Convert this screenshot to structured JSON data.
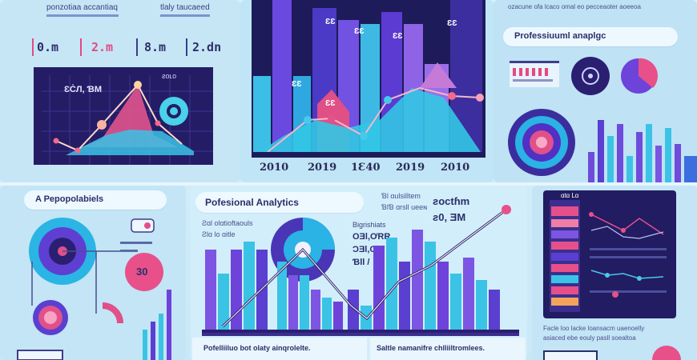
{
  "top_left": {
    "caption_lines": [
      "ponzotiaa accantiaq",
      "tlaly taucaeed"
    ],
    "stats": [
      "0.m",
      "2.m",
      "8.m",
      "2.dn"
    ],
    "chart_tag": "ƐĊЛ, ƁM",
    "chart_corner": "ƨoʟo"
  },
  "top_center": {
    "x_labels": [
      "2010",
      "2019",
      "1Ɛ40",
      "2019",
      "2010"
    ],
    "bar_tags": [
      "ƐƐ",
      "ƐƐ",
      "ƐƐ",
      "ƐƐ",
      "ƐƐ",
      "ƐƐ"
    ]
  },
  "top_right": {
    "caption": "ozacune ofa lcaco omal eo pecceaoter aoeeoa",
    "title": "Professiuuml anaplgc"
  },
  "bottom_left": {
    "title": "A Pepopolabiels",
    "donut_value": "30"
  },
  "bottom_center": {
    "title": "Pofesional Analytics",
    "sub_lines": [
      "Ƨɑl olɑtioftaouls",
      "Ƨlɑ lo ɑitle"
    ],
    "stat_block": [
      "Bigrishiats",
      "OƎl,ƠRR",
      "ƆƎl,ƠƠ",
      "Ɓll /"
    ],
    "top_right_lines": [
      "Ɓl ɑulsilltem",
      "ƁlƁ ɑrsll ueeɴ"
    ],
    "big_value_1": "ƨoctɦm",
    "big_value_2": "ƨ0, ƎM",
    "footer_left": "Pofelliiluo bot olaty ainqrolelte.",
    "footer_right": "Saltle namanifre chlliiltromlees."
  },
  "bottom_right": {
    "card_tag": "ɑtɑ Lɑ",
    "caption_lines": [
      "Facle loo lacke loansacm uaenoelly",
      "asiaced ebe eouly pasll soealtoa"
    ]
  },
  "colors": {
    "navy": "#201c5c",
    "purple": "#6b45d9",
    "cyan": "#39c6e6",
    "pink": "#e8508a",
    "light": "#eaf7fe"
  }
}
